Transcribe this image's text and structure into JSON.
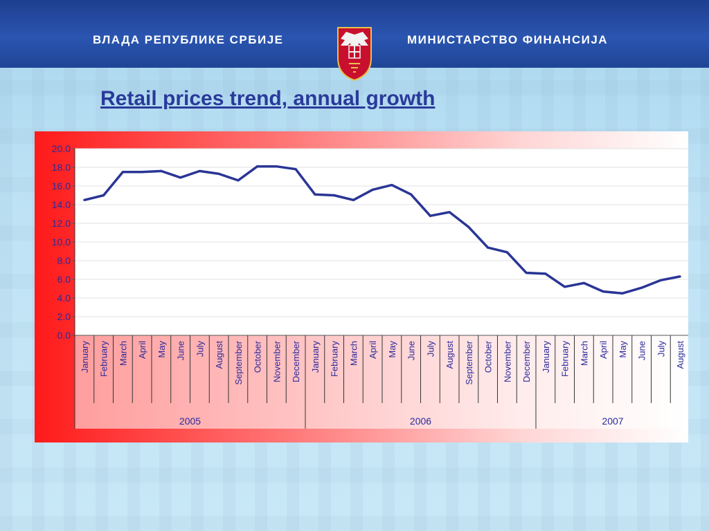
{
  "header": {
    "left_text": "ВЛАДА РЕПУБЛИКЕ СРБИЈЕ",
    "right_text": "МИНИСТАРСТВО ФИНАНСИЈА"
  },
  "slide": {
    "title": "Retail prices trend, annual growth"
  },
  "colors": {
    "line": "#2a3595",
    "header": "#1e3f8f",
    "title": "#2a3a9a"
  },
  "icons": {
    "crest": "serbian-coat-of-arms"
  },
  "chart_data": {
    "type": "line",
    "title": "",
    "xlabel": "",
    "ylabel": "",
    "ylim": [
      0,
      20
    ],
    "yticks": [
      "0.0",
      "2.0",
      "4.0",
      "6.0",
      "8.0",
      "10.0",
      "12.0",
      "14.0",
      "16.0",
      "18.0",
      "20.0"
    ],
    "grid": true,
    "legend": "none",
    "categories": [
      "January",
      "February",
      "March",
      "April",
      "May",
      "June",
      "July",
      "August",
      "September",
      "October",
      "November",
      "December",
      "January",
      "February",
      "March",
      "April",
      "May",
      "June",
      "July",
      "August",
      "September",
      "October",
      "November",
      "December",
      "January",
      "February",
      "March",
      "April",
      "May",
      "June",
      "July",
      "August"
    ],
    "year_groups": [
      {
        "label": "2005",
        "count": 12
      },
      {
        "label": "2006",
        "count": 12
      },
      {
        "label": "2007",
        "count": 8
      }
    ],
    "series": [
      {
        "values": [
          14.5,
          15.0,
          17.5,
          17.5,
          17.6,
          16.9,
          17.6,
          17.3,
          16.6,
          18.1,
          18.1,
          17.8,
          15.1,
          15.0,
          14.5,
          15.6,
          16.1,
          15.1,
          12.8,
          13.2,
          11.6,
          9.4,
          8.9,
          6.7,
          6.6,
          5.2,
          5.6,
          4.7,
          4.5,
          5.1,
          5.9,
          6.3
        ]
      }
    ]
  }
}
